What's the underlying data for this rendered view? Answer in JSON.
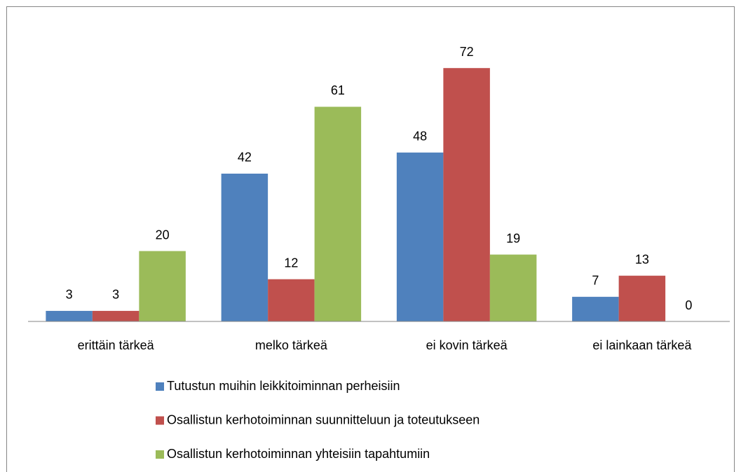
{
  "chart_data": {
    "type": "bar",
    "categories": [
      "erittäin tärkeä",
      "melko tärkeä",
      "ei kovin tärkeä",
      "ei lainkaan tärkeä"
    ],
    "series": [
      {
        "name": "Tutustun muihin leikkitoiminnan perheisiin",
        "color": "#4f81bd",
        "values": [
          3,
          42,
          48,
          7
        ]
      },
      {
        "name": "Osallistun kerhotoiminnan suunnitteluun ja toteutukseen",
        "color": "#c0504d",
        "values": [
          3,
          12,
          72,
          13
        ]
      },
      {
        "name": "Osallistun kerhotoiminnan yhteisiin tapahtumiin",
        "color": "#9bbb59",
        "values": [
          20,
          61,
          19,
          0
        ]
      }
    ],
    "ylim": [
      0,
      80
    ]
  }
}
